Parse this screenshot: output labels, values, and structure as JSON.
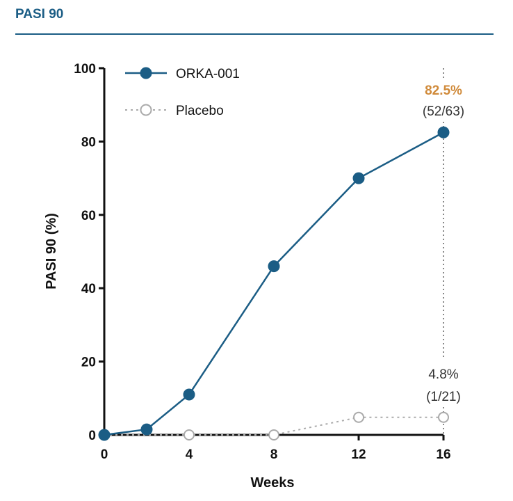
{
  "header": {
    "title": "PASI 90"
  },
  "colors": {
    "header": "#1b5d85",
    "orka": "#1b5d85",
    "placebo": "#aaaaaa",
    "highlight": "#d08a3a"
  },
  "chart_data": {
    "type": "line",
    "xlabel": "Weeks",
    "ylabel": "PASI 90 (%)",
    "xlim": [
      0,
      16
    ],
    "ylim": [
      0,
      100
    ],
    "xticks": [
      0,
      4,
      8,
      12,
      16
    ],
    "yticks": [
      0,
      20,
      40,
      60,
      80,
      100
    ],
    "grid": false,
    "legend_position": "top-left",
    "series": [
      {
        "name": "ORKA-001",
        "style": "solid-filled-markers",
        "x": [
          0,
          2,
          4,
          8,
          12,
          16
        ],
        "y": [
          0,
          1.5,
          11,
          46,
          70,
          82.5
        ]
      },
      {
        "name": "Placebo",
        "style": "dotted-open-markers",
        "x": [
          0,
          4,
          8,
          12,
          16
        ],
        "y": [
          0,
          0,
          0,
          4.8,
          4.8
        ]
      }
    ],
    "annotations": {
      "orka_pct": "82.5%",
      "orka_frac": "(52/63)",
      "placebo_pct": "4.8%",
      "placebo_frac": "(1/21)"
    }
  }
}
